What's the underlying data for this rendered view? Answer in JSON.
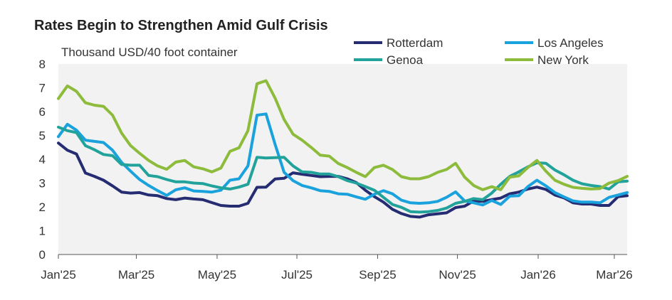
{
  "chart_data": {
    "type": "line",
    "title": "Rates Begin to Strengthen Amid Gulf Crisis",
    "ylabel": "Thousand USD/40 foot container",
    "xlabel": "",
    "ylim": [
      0,
      8
    ],
    "yticks": [
      "0",
      "1",
      "2",
      "3",
      "4",
      "5",
      "6",
      "7",
      "8"
    ],
    "xlim": [
      0,
      62
    ],
    "xticks": [
      {
        "label": "Jan'25",
        "x": 0
      },
      {
        "label": "Mar'25",
        "x": 8.5
      },
      {
        "label": "May'25",
        "x": 17.3
      },
      {
        "label": "Jul'25",
        "x": 26
      },
      {
        "label": "Sep'25",
        "x": 34.8
      },
      {
        "label": "Nov'25",
        "x": 43.5
      },
      {
        "label": "Jan'26",
        "x": 52.3
      },
      {
        "label": "Mar'26",
        "x": 60.6
      }
    ],
    "grid": false,
    "legend_position": "top-right",
    "series": [
      {
        "name": "Rotterdam",
        "color": "#262C72",
        "values": [
          4.68,
          4.38,
          4.22,
          3.42,
          3.28,
          3.12,
          2.88,
          2.62,
          2.58,
          2.6,
          2.5,
          2.47,
          2.35,
          2.3,
          2.37,
          2.33,
          2.3,
          2.18,
          2.06,
          2.03,
          2.03,
          2.15,
          2.82,
          2.83,
          3.17,
          3.2,
          3.43,
          3.37,
          3.32,
          3.27,
          3.28,
          3.28,
          3.18,
          3.02,
          2.7,
          2.43,
          2.2,
          1.9,
          1.72,
          1.6,
          1.57,
          1.67,
          1.71,
          1.75,
          1.97,
          2.03,
          2.25,
          2.23,
          2.3,
          2.37,
          2.55,
          2.62,
          2.75,
          2.83,
          2.73,
          2.5,
          2.38,
          2.17,
          2.12,
          2.12,
          2.06,
          2.06,
          2.43,
          2.47
        ]
      },
      {
        "name": "Los Angeles",
        "color": "#1AA2DD",
        "values": [
          4.95,
          5.47,
          5.22,
          4.8,
          4.75,
          4.7,
          4.38,
          3.87,
          3.5,
          3.15,
          2.9,
          2.68,
          2.48,
          2.72,
          2.8,
          2.67,
          2.65,
          2.62,
          2.7,
          3.12,
          3.18,
          3.72,
          5.85,
          5.9,
          4.63,
          3.45,
          3.1,
          2.9,
          2.8,
          2.68,
          2.65,
          2.55,
          2.53,
          2.42,
          2.32,
          2.53,
          2.68,
          2.55,
          2.28,
          2.17,
          2.15,
          2.17,
          2.23,
          2.4,
          2.63,
          2.25,
          2.17,
          2.08,
          2.27,
          2.1,
          2.45,
          2.47,
          2.85,
          3.12,
          2.88,
          2.6,
          2.42,
          2.25,
          2.2,
          2.2,
          2.17,
          2.4,
          2.5,
          2.6
        ]
      },
      {
        "name": "Genoa",
        "color": "#21A29B",
        "values": [
          5.35,
          5.2,
          5.12,
          4.57,
          4.4,
          4.2,
          4.15,
          3.78,
          3.75,
          3.75,
          3.32,
          3.27,
          3.15,
          3.05,
          3.05,
          3.0,
          2.98,
          2.88,
          2.8,
          2.75,
          2.83,
          2.95,
          4.08,
          4.05,
          4.07,
          4.08,
          3.72,
          3.47,
          3.45,
          3.38,
          3.38,
          3.27,
          3.1,
          3.0,
          2.85,
          2.7,
          2.4,
          2.1,
          1.98,
          1.8,
          1.78,
          1.8,
          1.85,
          1.95,
          2.15,
          2.23,
          2.35,
          2.3,
          2.58,
          2.95,
          3.28,
          3.47,
          3.68,
          3.85,
          3.83,
          3.55,
          3.35,
          3.12,
          2.97,
          2.9,
          2.85,
          2.75,
          3.05,
          3.08
        ]
      },
      {
        "name": "New York",
        "color": "#8DBB3B",
        "values": [
          6.55,
          7.08,
          6.85,
          6.37,
          6.27,
          6.22,
          5.85,
          5.1,
          4.57,
          4.25,
          3.95,
          3.72,
          3.58,
          3.88,
          3.95,
          3.68,
          3.6,
          3.47,
          3.63,
          4.33,
          4.48,
          5.2,
          7.17,
          7.3,
          6.57,
          5.67,
          5.05,
          4.8,
          4.5,
          4.17,
          4.13,
          3.82,
          3.65,
          3.45,
          3.27,
          3.65,
          3.75,
          3.57,
          3.27,
          3.18,
          3.18,
          3.27,
          3.45,
          3.57,
          3.83,
          3.25,
          2.9,
          2.72,
          2.85,
          2.72,
          3.25,
          3.3,
          3.65,
          3.95,
          3.5,
          3.12,
          2.95,
          2.82,
          2.78,
          2.75,
          2.77,
          3.0,
          3.1,
          3.28
        ]
      }
    ]
  }
}
